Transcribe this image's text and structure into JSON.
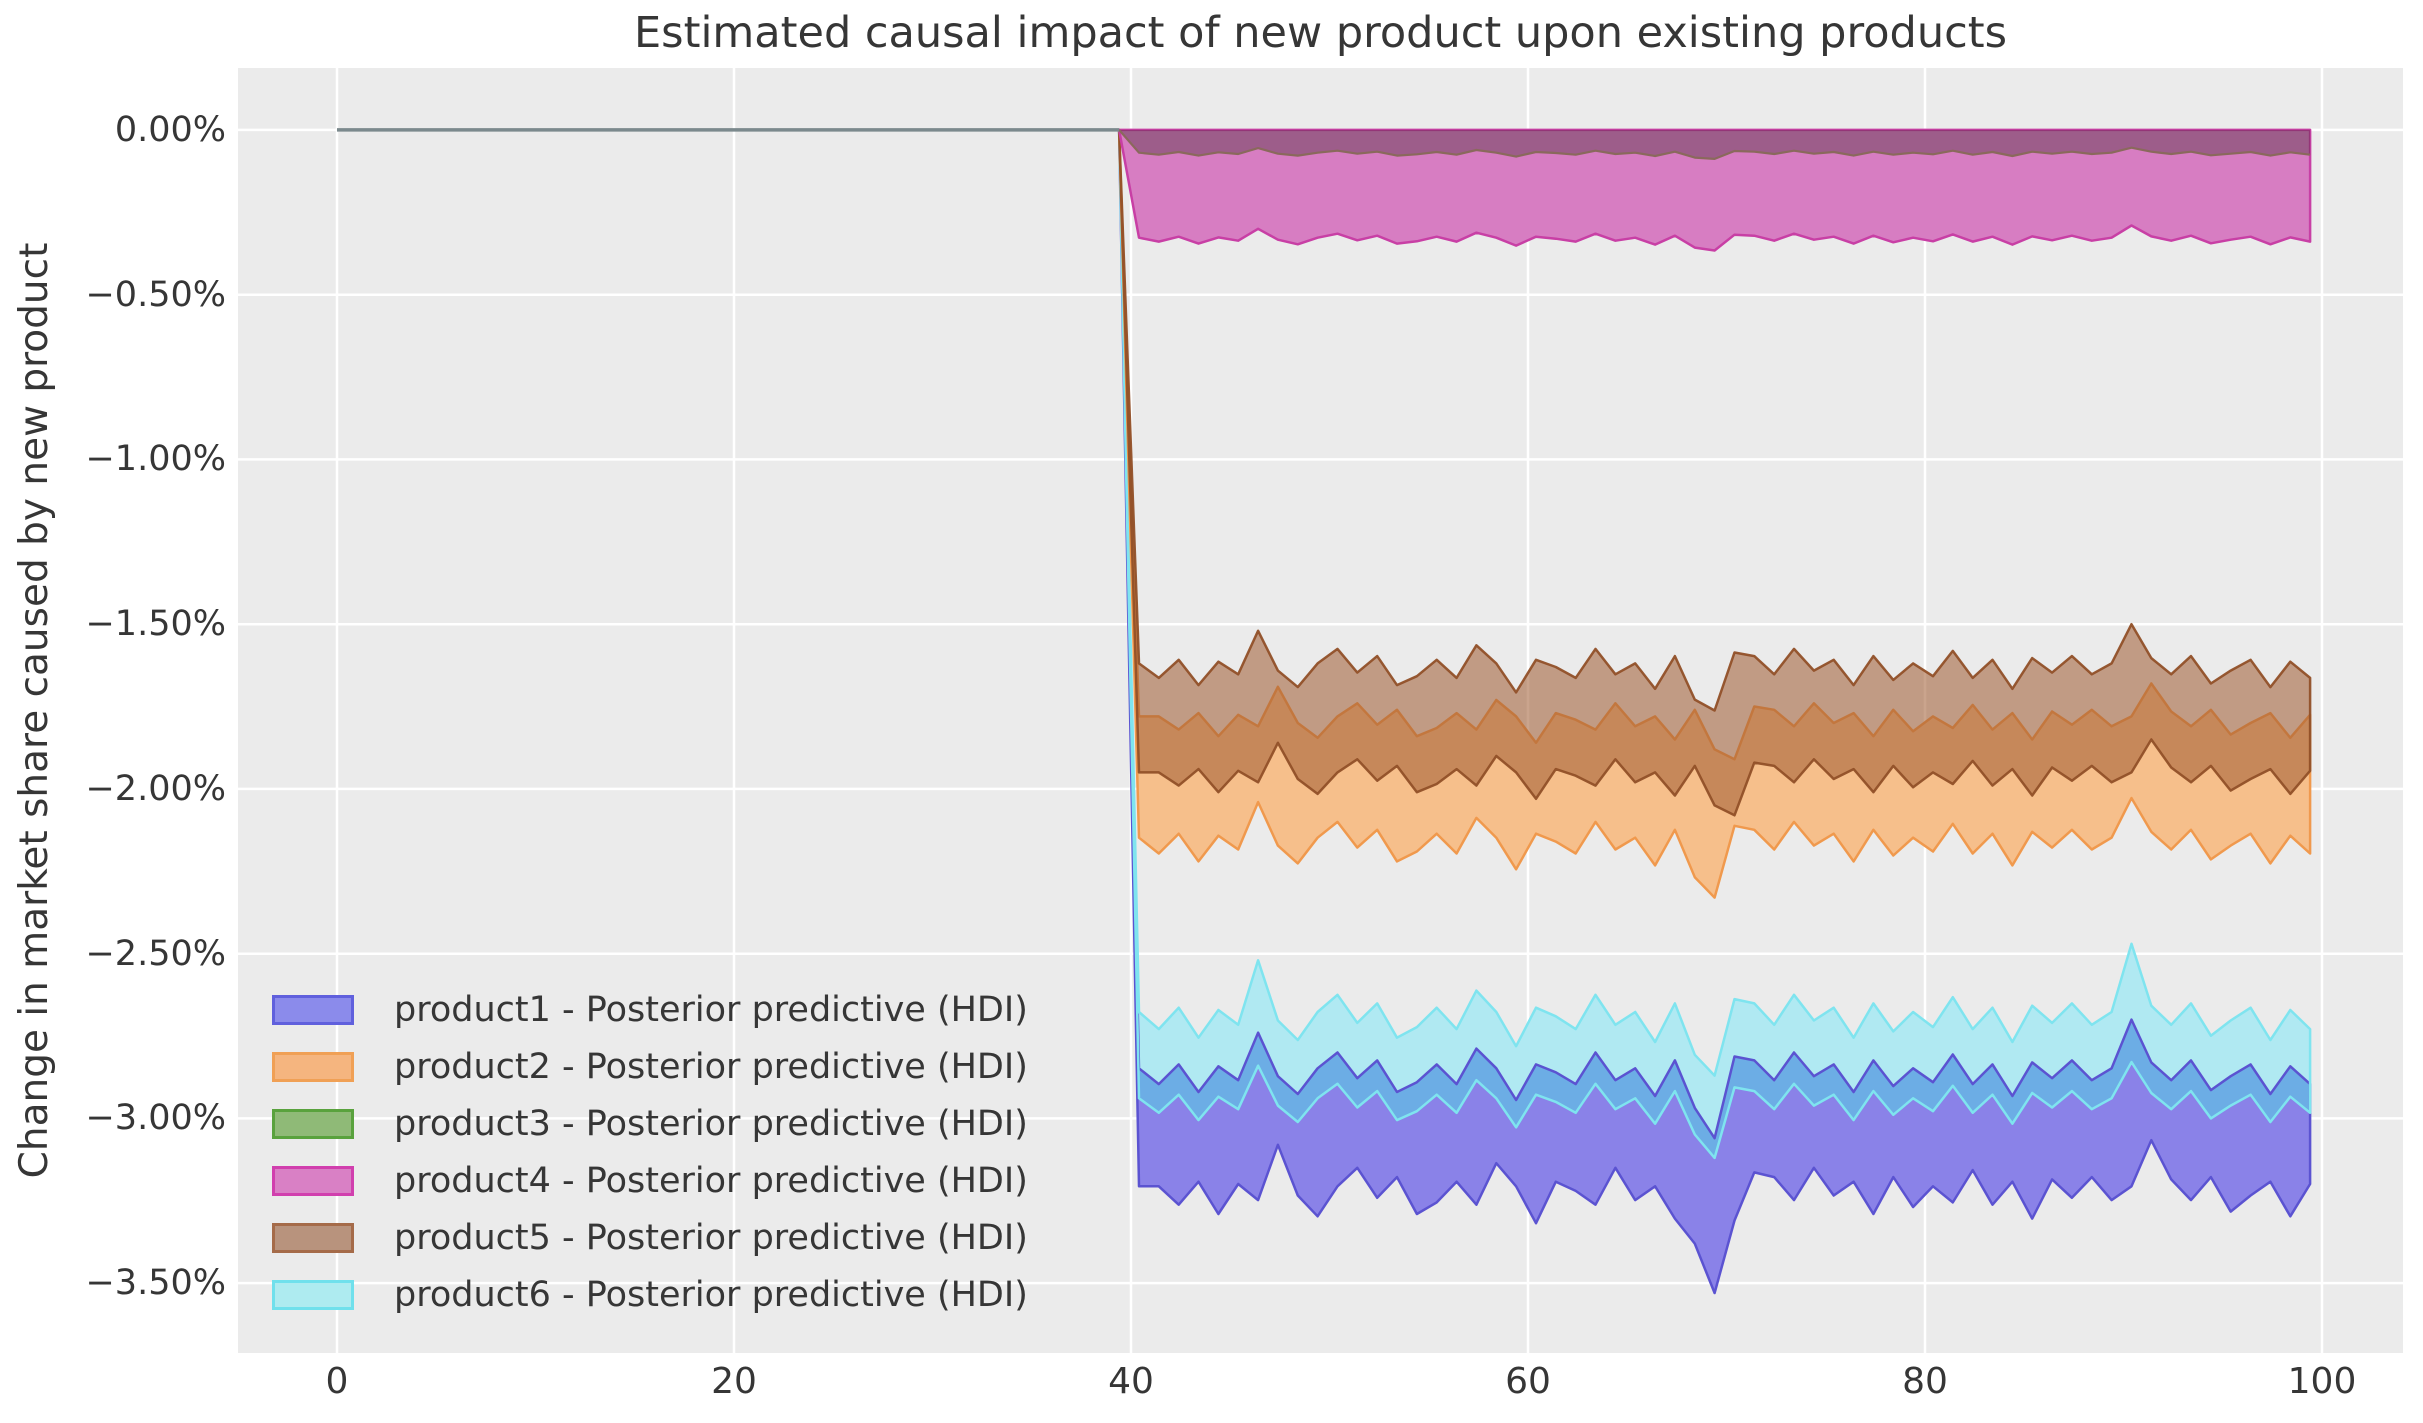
{
  "chart_data": {
    "type": "area",
    "title": "Estimated causal impact of new product upon existing products",
    "ylabel": "Change in market share caused by new product",
    "xlabel": "",
    "plot_bg": "#ebebeb",
    "grid_color": "#ffffff",
    "text_color": "#363636",
    "grid": true,
    "legend_position": "lower left",
    "xlim": [
      -4.99,
      104.08
    ],
    "ylim": [
      -3.712,
      0.188
    ],
    "x_axis": {
      "tick_values": [
        0,
        20,
        40,
        60,
        80,
        100
      ],
      "tick_labels": [
        "0",
        "20",
        "40",
        "60",
        "80",
        "100"
      ]
    },
    "y_axis": {
      "tick_values": [
        0,
        -0.5,
        -1.0,
        -1.5,
        -2.0,
        -2.5,
        -3.0,
        -3.5
      ],
      "tick_labels": [
        "0.00%",
        "−0.50%",
        "−1.00%",
        "−1.50%",
        "−2.00%",
        "−2.50%",
        "−3.00%",
        "−3.50%"
      ]
    },
    "intervention_x": 40,
    "pre_period": {
      "x": [
        0,
        39.4
      ],
      "y": [
        0,
        0
      ]
    },
    "anchor_x": 39.4,
    "x": [
      40.4,
      41.4,
      42.4,
      43.4,
      44.4,
      45.4,
      46.4,
      47.4,
      48.4,
      49.4,
      50.4,
      51.4,
      52.4,
      53.4,
      54.4,
      55.4,
      56.4,
      57.4,
      58.4,
      59.4,
      60.4,
      61.4,
      62.4,
      63.4,
      64.4,
      65.4,
      66.4,
      67.4,
      68.4,
      69.4,
      70.4,
      71.4,
      72.4,
      73.4,
      74.4,
      75.4,
      76.4,
      77.4,
      78.4,
      79.4,
      80.4,
      81.4,
      82.4,
      83.4,
      84.4,
      85.4,
      86.4,
      87.4,
      88.4,
      89.4,
      90.4,
      91.4,
      92.4,
      93.4,
      94.4,
      95.4,
      96.4,
      97.4,
      98.4,
      99.4
    ],
    "series": [
      {
        "name": "product1",
        "legend_label": "product1 - Posterior predictive (HDI)",
        "legend_fill": "#8b8beb",
        "legend_edge": "#6060dd",
        "fill": "#8a82e8",
        "edge": "#5b53d1",
        "upper": [
          -2.848,
          -2.896,
          -2.836,
          -2.92,
          -2.842,
          -2.884,
          -2.74,
          -2.872,
          -2.926,
          -2.848,
          -2.8,
          -2.878,
          -2.824,
          -2.92,
          -2.89,
          -2.836,
          -2.896,
          -2.788,
          -2.848,
          -2.944,
          -2.836,
          -2.86,
          -2.896,
          -2.8,
          -2.884,
          -2.848,
          -2.932,
          -2.824,
          -2.968,
          -3.06,
          -2.812,
          -2.824,
          -2.884,
          -2.8,
          -2.872,
          -2.836,
          -2.92,
          -2.824,
          -2.902,
          -2.848,
          -2.89,
          -2.806,
          -2.896,
          -2.836,
          -2.932,
          -2.83,
          -2.878,
          -2.824,
          -2.884,
          -2.848,
          -2.7,
          -2.83,
          -2.884,
          -2.824,
          -2.914,
          -2.872,
          -2.836,
          -2.926,
          -2.842,
          -2.896
        ],
        "lower": [
          -3.206,
          -3.206,
          -3.262,
          -3.192,
          -3.29,
          -3.199,
          -3.248,
          -3.08,
          -3.234,
          -3.297,
          -3.206,
          -3.15,
          -3.241,
          -3.178,
          -3.29,
          -3.255,
          -3.192,
          -3.262,
          -3.136,
          -3.206,
          -3.318,
          -3.192,
          -3.22,
          -3.262,
          -3.15,
          -3.248,
          -3.206,
          -3.304,
          -3.38,
          -3.53,
          -3.31,
          -3.164,
          -3.178,
          -3.248,
          -3.15,
          -3.234,
          -3.192,
          -3.29,
          -3.178,
          -3.269,
          -3.206,
          -3.255,
          -3.157,
          -3.262,
          -3.192,
          -3.304,
          -3.185,
          -3.241,
          -3.178,
          -3.248,
          -3.206,
          -3.066,
          -3.185,
          -3.248,
          -3.178,
          -3.283,
          -3.234,
          -3.192,
          -3.297,
          -3.199
        ]
      },
      {
        "name": "product2",
        "legend_label": "product2 - Posterior predictive (HDI)",
        "legend_fill": "#f5b57f",
        "legend_edge": "#f0a055",
        "fill": "#f6bf8b",
        "edge": "#f0994d",
        "upper": [
          -1.78,
          -1.78,
          -1.82,
          -1.77,
          -1.84,
          -1.775,
          -1.81,
          -1.69,
          -1.8,
          -1.845,
          -1.78,
          -1.74,
          -1.805,
          -1.76,
          -1.84,
          -1.815,
          -1.77,
          -1.82,
          -1.73,
          -1.78,
          -1.86,
          -1.77,
          -1.79,
          -1.82,
          -1.74,
          -1.81,
          -1.78,
          -1.85,
          -1.76,
          -1.88,
          -1.91,
          -1.75,
          -1.76,
          -1.81,
          -1.74,
          -1.8,
          -1.77,
          -1.84,
          -1.76,
          -1.825,
          -1.78,
          -1.815,
          -1.745,
          -1.82,
          -1.77,
          -1.85,
          -1.765,
          -1.805,
          -1.76,
          -1.81,
          -1.78,
          -1.68,
          -1.765,
          -1.81,
          -1.76,
          -1.835,
          -1.8,
          -1.77,
          -1.845,
          -1.775
        ],
        "lower": [
          -2.148,
          -2.196,
          -2.136,
          -2.22,
          -2.142,
          -2.184,
          -2.04,
          -2.172,
          -2.226,
          -2.148,
          -2.1,
          -2.178,
          -2.124,
          -2.22,
          -2.19,
          -2.136,
          -2.196,
          -2.088,
          -2.148,
          -2.244,
          -2.136,
          -2.16,
          -2.196,
          -2.1,
          -2.184,
          -2.148,
          -2.232,
          -2.124,
          -2.268,
          -2.33,
          -2.112,
          -2.124,
          -2.184,
          -2.1,
          -2.172,
          -2.136,
          -2.22,
          -2.124,
          -2.202,
          -2.148,
          -2.19,
          -2.106,
          -2.196,
          -2.136,
          -2.232,
          -2.13,
          -2.178,
          -2.124,
          -2.184,
          -2.148,
          -2.028,
          -2.13,
          -2.184,
          -2.124,
          -2.214,
          -2.172,
          -2.136,
          -2.226,
          -2.142,
          -2.196
        ]
      },
      {
        "name": "product3",
        "legend_label": "product3 - Posterior predictive (HDI)",
        "legend_fill": "#8fba77",
        "legend_edge": "#59a23d",
        "fill": "rgba(56,36,38,0.36)",
        "edge": "#8a695c",
        "upper": 0,
        "lower": [
          -0.069,
          -0.075,
          -0.067,
          -0.078,
          -0.068,
          -0.073,
          -0.055,
          -0.072,
          -0.078,
          -0.069,
          -0.063,
          -0.072,
          -0.066,
          -0.078,
          -0.074,
          -0.067,
          -0.075,
          -0.061,
          -0.069,
          -0.081,
          -0.067,
          -0.07,
          -0.075,
          -0.063,
          -0.073,
          -0.069,
          -0.079,
          -0.066,
          -0.084,
          -0.088,
          -0.064,
          -0.066,
          -0.073,
          -0.063,
          -0.072,
          -0.067,
          -0.078,
          -0.066,
          -0.075,
          -0.069,
          -0.074,
          -0.063,
          -0.075,
          -0.067,
          -0.079,
          -0.066,
          -0.072,
          -0.066,
          -0.073,
          -0.069,
          -0.054,
          -0.066,
          -0.073,
          -0.066,
          -0.077,
          -0.072,
          -0.067,
          -0.078,
          -0.068,
          -0.075
        ]
      },
      {
        "name": "product4",
        "legend_label": "product4 - Posterior predictive (HDI)",
        "legend_fill": "#d980c5",
        "legend_edge": "#d13fae",
        "fill": "#d77dc2",
        "edge": "#c83fa5",
        "upper": 0,
        "lower": [
          -0.327,
          -0.339,
          -0.324,
          -0.345,
          -0.326,
          -0.336,
          -0.3,
          -0.333,
          -0.347,
          -0.327,
          -0.315,
          -0.335,
          -0.321,
          -0.345,
          -0.338,
          -0.324,
          -0.339,
          -0.312,
          -0.327,
          -0.351,
          -0.324,
          -0.33,
          -0.339,
          -0.315,
          -0.336,
          -0.327,
          -0.348,
          -0.321,
          -0.357,
          -0.366,
          -0.318,
          -0.321,
          -0.336,
          -0.315,
          -0.333,
          -0.324,
          -0.345,
          -0.321,
          -0.341,
          -0.327,
          -0.338,
          -0.317,
          -0.339,
          -0.324,
          -0.348,
          -0.323,
          -0.335,
          -0.321,
          -0.336,
          -0.327,
          -0.29,
          -0.323,
          -0.336,
          -0.321,
          -0.344,
          -0.333,
          -0.324,
          -0.347,
          -0.326,
          -0.339
        ]
      },
      {
        "name": "product5",
        "legend_label": "product5 - Posterior predictive (HDI)",
        "legend_fill": "#b8937d",
        "legend_edge": "#a56b49",
        "fill": "rgba(160,92,52,0.56)",
        "edge": "rgba(145,80,40,0.95)",
        "upper": [
          -1.619,
          -1.663,
          -1.608,
          -1.685,
          -1.614,
          -1.652,
          -1.52,
          -1.641,
          -1.691,
          -1.619,
          -1.575,
          -1.647,
          -1.597,
          -1.685,
          -1.658,
          -1.608,
          -1.663,
          -1.564,
          -1.619,
          -1.707,
          -1.608,
          -1.63,
          -1.663,
          -1.575,
          -1.652,
          -1.619,
          -1.696,
          -1.597,
          -1.729,
          -1.762,
          -1.586,
          -1.597,
          -1.652,
          -1.575,
          -1.641,
          -1.608,
          -1.685,
          -1.597,
          -1.669,
          -1.619,
          -1.658,
          -1.581,
          -1.663,
          -1.608,
          -1.696,
          -1.603,
          -1.647,
          -1.597,
          -1.652,
          -1.619,
          -1.5,
          -1.603,
          -1.652,
          -1.597,
          -1.68,
          -1.641,
          -1.608,
          -1.691,
          -1.614,
          -1.663
        ],
        "lower": [
          -1.95,
          -1.95,
          -1.99,
          -1.94,
          -2.01,
          -1.945,
          -1.98,
          -1.86,
          -1.97,
          -2.015,
          -1.95,
          -1.91,
          -1.975,
          -1.93,
          -2.01,
          -1.985,
          -1.94,
          -1.99,
          -1.9,
          -1.95,
          -2.03,
          -1.94,
          -1.96,
          -1.99,
          -1.91,
          -1.98,
          -1.95,
          -2.02,
          -1.93,
          -2.05,
          -2.08,
          -1.92,
          -1.93,
          -1.98,
          -1.91,
          -1.97,
          -1.94,
          -2.01,
          -1.93,
          -1.995,
          -1.95,
          -1.985,
          -1.915,
          -1.99,
          -1.94,
          -2.02,
          -1.935,
          -1.975,
          -1.93,
          -1.98,
          -1.95,
          -1.85,
          -1.935,
          -1.98,
          -1.93,
          -2.005,
          -1.97,
          -1.94,
          -2.015,
          -1.945
        ]
      },
      {
        "name": "product6",
        "legend_label": "product6 - Posterior predictive (HDI)",
        "legend_fill": "#aeebf0",
        "legend_edge": "#70e0ec",
        "fill": "#b0e9f2",
        "edge": "#7fe4ef",
        "upper": [
          -2.677,
          -2.729,
          -2.664,
          -2.755,
          -2.671,
          -2.716,
          -2.52,
          -2.703,
          -2.762,
          -2.677,
          -2.625,
          -2.71,
          -2.651,
          -2.755,
          -2.723,
          -2.664,
          -2.729,
          -2.612,
          -2.677,
          -2.781,
          -2.664,
          -2.69,
          -2.729,
          -2.625,
          -2.716,
          -2.677,
          -2.768,
          -2.651,
          -2.807,
          -2.87,
          -2.638,
          -2.651,
          -2.716,
          -2.625,
          -2.703,
          -2.664,
          -2.755,
          -2.651,
          -2.736,
          -2.677,
          -2.723,
          -2.632,
          -2.729,
          -2.664,
          -2.768,
          -2.658,
          -2.71,
          -2.651,
          -2.716,
          -2.677,
          -2.47,
          -2.658,
          -2.716,
          -2.651,
          -2.749,
          -2.703,
          -2.664,
          -2.762,
          -2.671,
          -2.729
        ],
        "lower": [
          -2.939,
          -2.983,
          -2.928,
          -3.005,
          -2.934,
          -2.972,
          -2.84,
          -2.961,
          -3.011,
          -2.939,
          -2.895,
          -2.967,
          -2.917,
          -3.005,
          -2.978,
          -2.928,
          -2.983,
          -2.884,
          -2.939,
          -3.027,
          -2.928,
          -2.95,
          -2.983,
          -2.895,
          -2.972,
          -2.939,
          -3.016,
          -2.917,
          -3.049,
          -3.12,
          -2.906,
          -2.917,
          -2.972,
          -2.895,
          -2.961,
          -2.928,
          -3.005,
          -2.917,
          -2.989,
          -2.939,
          -2.978,
          -2.901,
          -2.983,
          -2.928,
          -3.016,
          -2.923,
          -2.967,
          -2.917,
          -2.972,
          -2.939,
          -2.829,
          -2.923,
          -2.972,
          -2.917,
          -3.0,
          -2.961,
          -2.928,
          -3.011,
          -2.934,
          -2.983
        ]
      }
    ],
    "colors": {
      "pre_line": "#7b898d",
      "cyan_only": "#b0e9f2",
      "blue_overlap": "#6cade5",
      "purple_only": "#8a82e8"
    }
  }
}
